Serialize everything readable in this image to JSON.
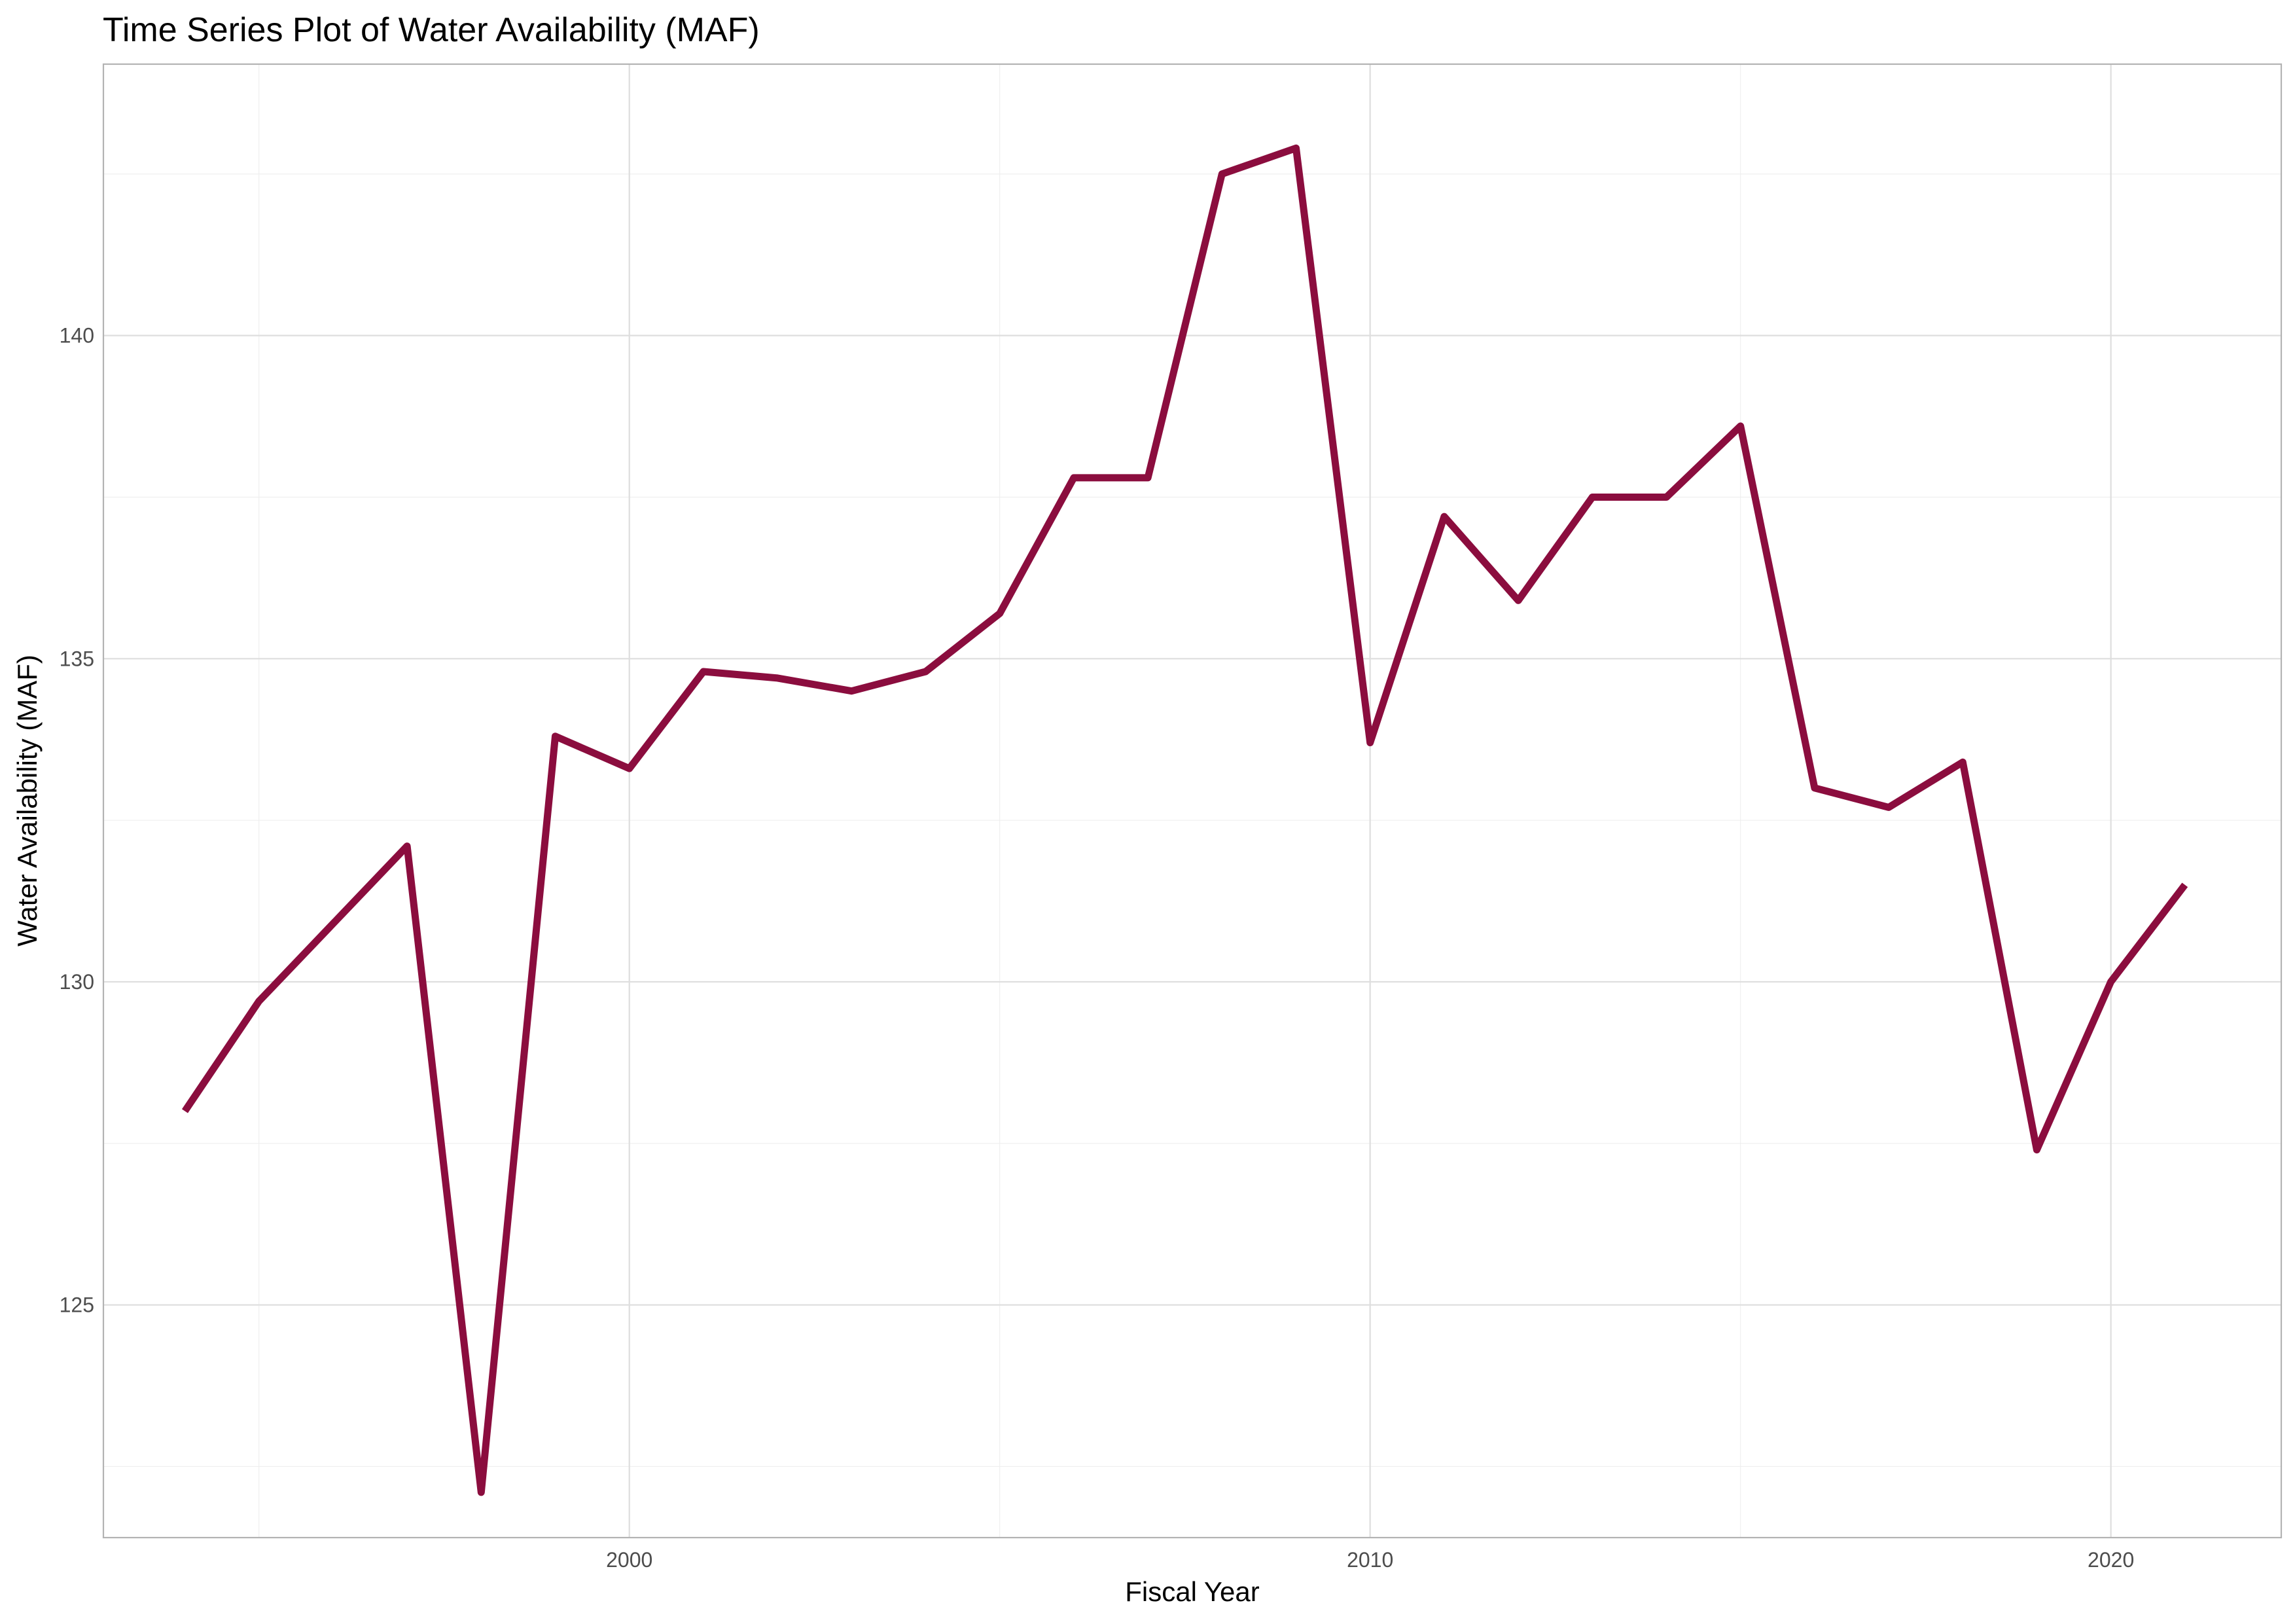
{
  "chart_data": {
    "type": "line",
    "title": "Time Series Plot of Water Availability (MAF)",
    "xlabel": "Fiscal Year",
    "ylabel": "Water Availability (MAF)",
    "xlim": [
      1992.9,
      2022.3
    ],
    "ylim": [
      121.4,
      144.2
    ],
    "x_ticks": [
      2000,
      2010,
      2020
    ],
    "x_minor_ticks": [
      1995,
      2005,
      2015
    ],
    "y_ticks": [
      125,
      130,
      135,
      140
    ],
    "y_minor_ticks": [
      122.5,
      127.5,
      132.5,
      137.5,
      142.5
    ],
    "grid": true,
    "legend": "none",
    "line_color": "#8B0D3E",
    "series": [
      {
        "name": "Water Availability (MAF)",
        "x": [
          1994,
          1995,
          1996,
          1997,
          1998,
          1999,
          2000,
          2001,
          2002,
          2003,
          2004,
          2005,
          2006,
          2007,
          2008,
          2009,
          2010,
          2011,
          2012,
          2013,
          2014,
          2015,
          2016,
          2017,
          2018,
          2019,
          2020,
          2021
        ],
        "values": [
          128.0,
          129.7,
          130.9,
          132.1,
          122.1,
          133.8,
          133.3,
          134.8,
          134.7,
          134.5,
          134.8,
          135.7,
          137.8,
          137.8,
          142.5,
          142.9,
          133.7,
          137.2,
          135.9,
          137.5,
          137.5,
          138.6,
          133.0,
          132.7,
          133.4,
          127.4,
          130.0,
          131.5
        ]
      }
    ]
  }
}
